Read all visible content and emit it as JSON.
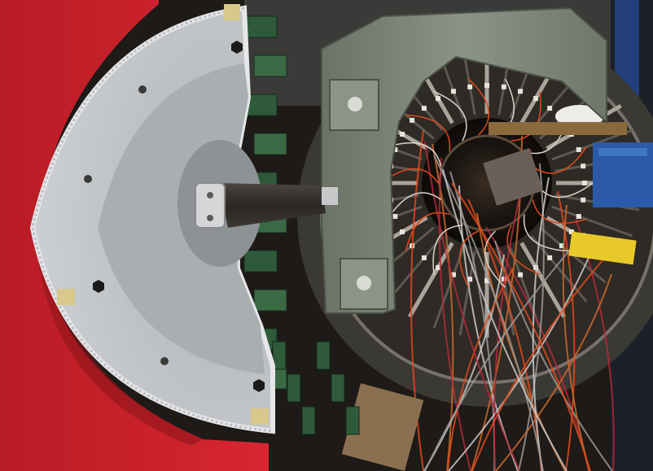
{
  "photo": {
    "subject": "particle-detector-assembly",
    "palette": {
      "red_frame": "#d2222c",
      "red_frame_shadow": "#8e1419",
      "aluminum_plate": "#c8ccd0",
      "aluminum_plate_inner": "#a6acb0",
      "gray_arm": "#7e8679",
      "gray_arm_dark": "#5d6459",
      "detector_core_dark": "#1b1612",
      "copper_cable": "#c96a2c",
      "orange_cable": "#e04a1c",
      "blue_box": "#2a5aa8",
      "yellow_label": "#e8c92a",
      "foil_silver": "#d9dadd",
      "brass_block": "#8a6a3c"
    }
  }
}
